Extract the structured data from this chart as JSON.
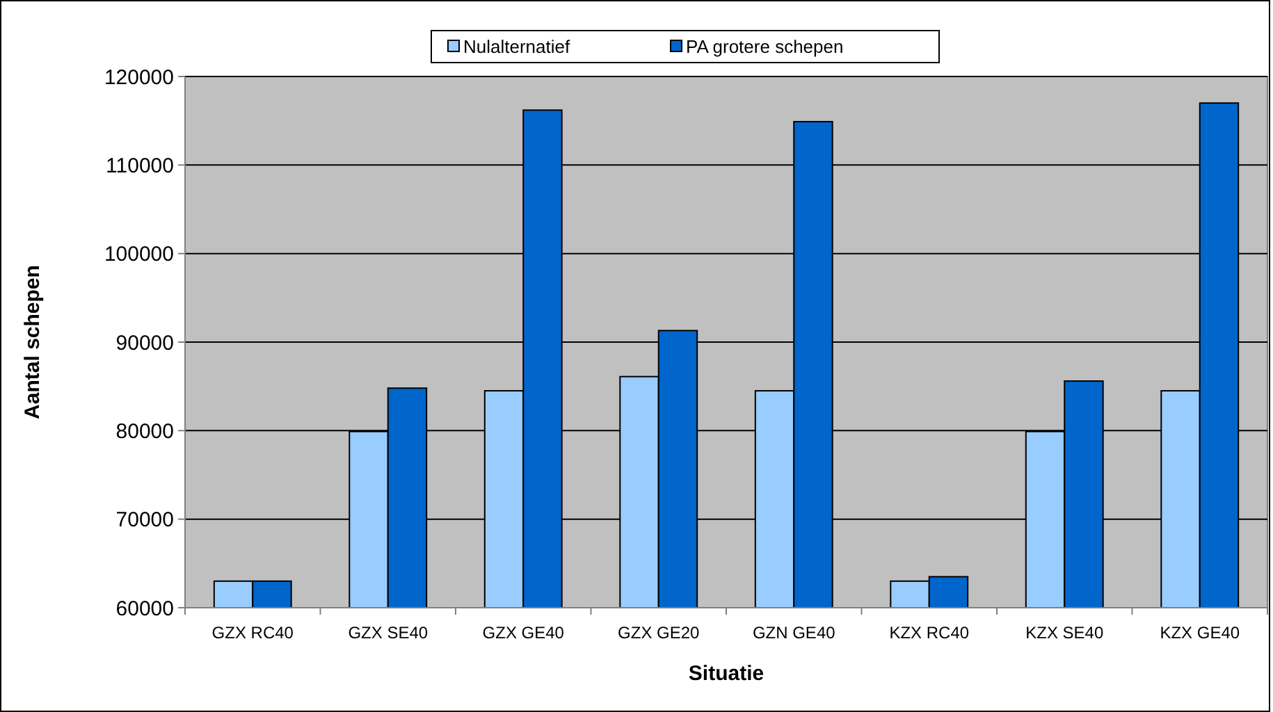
{
  "chart_data": {
    "type": "bar",
    "xlabel": "Situatie",
    "ylabel": "Aantal schepen",
    "categories": [
      "GZX RC40",
      "GZX SE40",
      "GZX GE40",
      "GZX GE20",
      "GZN GE40",
      "KZX RC40",
      "KZX SE40",
      "KZX GE40"
    ],
    "series": [
      {
        "name": "Nulalternatief",
        "color": "#99ccff",
        "values": [
          63000,
          79900,
          84500,
          86100,
          84500,
          63000,
          79900,
          84500
        ]
      },
      {
        "name": "PA grotere schepen",
        "color": "#0066cc",
        "values": [
          63000,
          84800,
          116200,
          91300,
          114900,
          63500,
          85600,
          117000
        ]
      }
    ],
    "ylim": [
      60000,
      120000
    ],
    "yticks": [
      60000,
      70000,
      80000,
      90000,
      100000,
      110000,
      120000
    ],
    "grid": "y",
    "legend": "top"
  }
}
